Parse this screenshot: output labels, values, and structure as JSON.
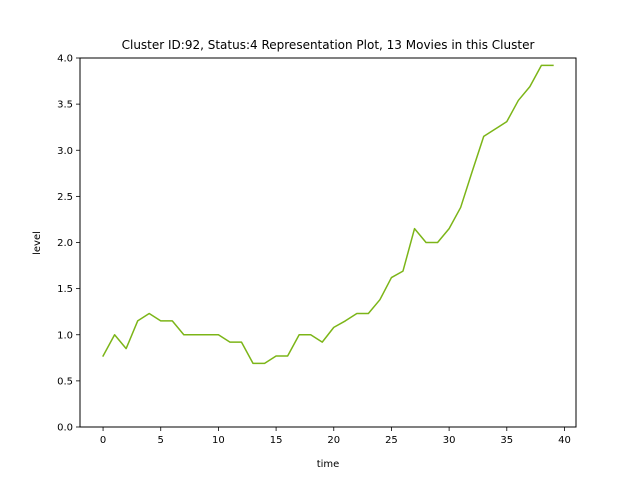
{
  "chart_data": {
    "type": "line",
    "title": "Cluster ID:92, Status:4 Representation Plot, 13 Movies in this Cluster",
    "xlabel": "time",
    "ylabel": "level",
    "xlim": [
      -2,
      41
    ],
    "ylim": [
      0,
      4
    ],
    "xticks": [
      0,
      5,
      10,
      15,
      20,
      25,
      30,
      35,
      40
    ],
    "yticks": [
      0.0,
      0.5,
      1.0,
      1.5,
      2.0,
      2.5,
      3.0,
      3.5,
      4.0
    ],
    "xtick_labels": [
      "0",
      "5",
      "10",
      "15",
      "20",
      "25",
      "30",
      "35",
      "40"
    ],
    "ytick_labels": [
      "0.0",
      "0.5",
      "1.0",
      "1.5",
      "2.0",
      "2.5",
      "3.0",
      "3.5",
      "4.0"
    ],
    "grid": false,
    "legend": "none",
    "color": "#7cb518",
    "series": [
      {
        "x": [
          0,
          1,
          2,
          3,
          4,
          5,
          6,
          7,
          8,
          9,
          10,
          11,
          12,
          13,
          14,
          15,
          16,
          17,
          18,
          19,
          20,
          21,
          22,
          23,
          24,
          25,
          26,
          27,
          28,
          29,
          30,
          31,
          32,
          33,
          34,
          35,
          36,
          37,
          38,
          39
        ],
        "values": [
          0.77,
          1.0,
          0.85,
          1.15,
          1.23,
          1.15,
          1.15,
          1.0,
          1.0,
          1.0,
          1.0,
          0.92,
          0.92,
          0.69,
          0.69,
          0.77,
          0.77,
          1.0,
          1.0,
          0.92,
          1.08,
          1.15,
          1.23,
          1.23,
          1.38,
          1.62,
          1.69,
          2.15,
          2.0,
          2.0,
          2.15,
          2.38,
          2.77,
          3.15,
          3.23,
          3.31,
          3.54,
          3.69,
          3.92,
          3.92
        ]
      }
    ]
  }
}
